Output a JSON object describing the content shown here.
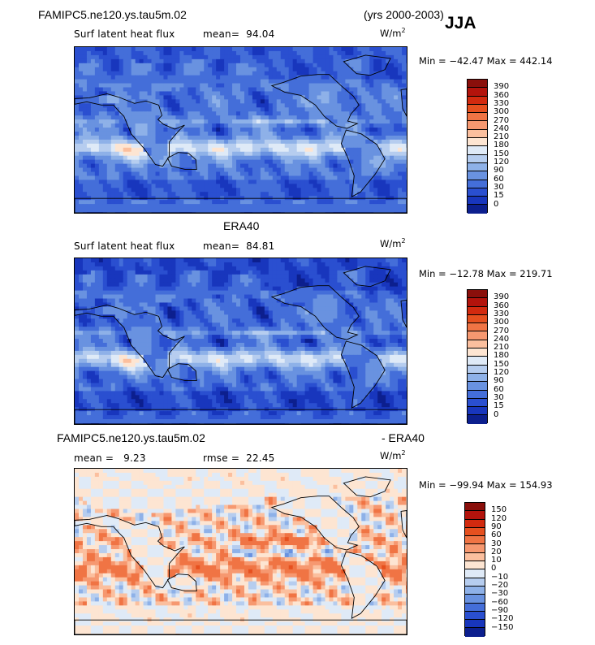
{
  "header": {
    "model": "FAMIPC5.ne120.ys.tau5m.02",
    "years": "(yrs 2000-2003)",
    "season": "JJA"
  },
  "panels": [
    {
      "id": "model",
      "title": "",
      "left_label": "Surf latent heat flux",
      "stat_label": "mean=",
      "stat_value": "94.04",
      "units": "W/m",
      "units_exp": "2",
      "minmax": "Min = −42.47 Max = 442.14",
      "levels": [
        "390",
        "360",
        "330",
        "300",
        "270",
        "240",
        "210",
        "180",
        "150",
        "120",
        "90",
        "60",
        "30",
        "15",
        "0"
      ],
      "colors": [
        "#8a0f0b",
        "#b3130c",
        "#d22a0f",
        "#e6501f",
        "#f07444",
        "#f69870",
        "#fbbf9e",
        "#fde5d2",
        "#dfeaf7",
        "#b6cdef",
        "#8eb1e8",
        "#6992e0",
        "#446ed9",
        "#2a4fd0",
        "#1836bd",
        "#0c1f8e"
      ],
      "map": {
        "palette": "latent",
        "mean": 94.04
      }
    },
    {
      "id": "obs",
      "title": "ERA40",
      "left_label": "Surf latent heat flux",
      "stat_label": "mean=",
      "stat_value": "84.81",
      "units": "W/m",
      "units_exp": "2",
      "minmax": "Min = −12.78 Max = 219.71",
      "levels": [
        "390",
        "360",
        "330",
        "300",
        "270",
        "240",
        "210",
        "180",
        "150",
        "120",
        "90",
        "60",
        "30",
        "15",
        "0"
      ],
      "colors": [
        "#8a0f0b",
        "#b3130c",
        "#d22a0f",
        "#e6501f",
        "#f07444",
        "#f69870",
        "#fbbf9e",
        "#fde5d2",
        "#dfeaf7",
        "#b6cdef",
        "#8eb1e8",
        "#6992e0",
        "#446ed9",
        "#2a4fd0",
        "#1836bd",
        "#0c1f8e"
      ],
      "map": {
        "palette": "latent",
        "mean": 84.81
      }
    },
    {
      "id": "diff",
      "title_left": "FAMIPC5.ne120.ys.tau5m.02",
      "title_right": "- ERA40",
      "left_label": "mean =",
      "left_value": "9.23",
      "stat_label": "rmse =",
      "stat_value": "22.45",
      "units": "W/m",
      "units_exp": "2",
      "minmax": "Min = −99.94 Max = 154.93",
      "levels": [
        "150",
        "120",
        "90",
        "60",
        "30",
        "20",
        "10",
        "0",
        "−10",
        "−20",
        "−30",
        "−60",
        "−90",
        "−120",
        "−150"
      ],
      "colors": [
        "#8a0f0b",
        "#b3130c",
        "#d22a0f",
        "#e6501f",
        "#f07444",
        "#f69870",
        "#fbbf9e",
        "#fde5d2",
        "#dfeaf7",
        "#b6cdef",
        "#8eb1e8",
        "#6992e0",
        "#446ed9",
        "#2a4fd0",
        "#1836bd",
        "#0c1f8e"
      ],
      "map": {
        "palette": "diff",
        "mean": 9.23
      }
    }
  ]
}
